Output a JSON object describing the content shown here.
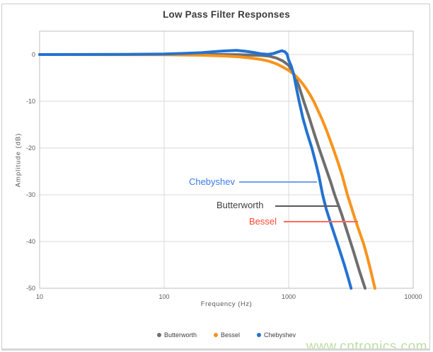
{
  "chart_data": {
    "type": "line",
    "title": "Low Pass Filter Responses",
    "xlabel": "Frequency (Hz)",
    "ylabel": "Amplitude (dB)",
    "x_scale": "log",
    "xlim": [
      10,
      10000
    ],
    "ylim": [
      -50,
      5
    ],
    "x_ticks": [
      "10",
      "100",
      "1000",
      "10000"
    ],
    "y_ticks": [
      "0",
      "-10",
      "-20",
      "-30",
      "-40",
      "-50"
    ],
    "y_tick_values": [
      0,
      -10,
      -20,
      -30,
      -40,
      -50
    ],
    "grid": true,
    "grid_color": "#d9d9d9",
    "axis_border_color": "#bfbfbf",
    "legend_position": "bottom",
    "series": [
      {
        "name": "Butterworth",
        "color": "#6e6e6e",
        "points": [
          [
            10,
            0
          ],
          [
            50,
            0
          ],
          [
            100,
            0
          ],
          [
            200,
            0
          ],
          [
            300,
            0
          ],
          [
            400,
            -0.05
          ],
          [
            500,
            -0.1
          ],
          [
            600,
            -0.2
          ],
          [
            700,
            -0.35
          ],
          [
            800,
            -0.75
          ],
          [
            900,
            -1.4
          ],
          [
            1000,
            -2.3
          ],
          [
            1100,
            -4.2
          ],
          [
            1200,
            -6.5
          ],
          [
            1322,
            -10
          ],
          [
            1450,
            -13.2
          ],
          [
            1600,
            -16.8
          ],
          [
            1750,
            -20
          ],
          [
            2000,
            -24.5
          ],
          [
            2170,
            -27.2
          ],
          [
            2340,
            -30
          ],
          [
            2650,
            -34
          ],
          [
            3000,
            -38.5
          ],
          [
            3350,
            -42.5
          ],
          [
            3700,
            -46.3
          ],
          [
            4110,
            -50
          ]
        ]
      },
      {
        "name": "Bessel",
        "color": "#f7941d",
        "points": [
          [
            10,
            0
          ],
          [
            100,
            -0.05
          ],
          [
            200,
            -0.15
          ],
          [
            300,
            -0.3
          ],
          [
            400,
            -0.5
          ],
          [
            500,
            -0.75
          ],
          [
            600,
            -1.05
          ],
          [
            700,
            -1.45
          ],
          [
            800,
            -2.0
          ],
          [
            900,
            -2.7
          ],
          [
            1000,
            -3.4
          ],
          [
            1100,
            -4.2
          ],
          [
            1200,
            -5.2
          ],
          [
            1300,
            -6.3
          ],
          [
            1400,
            -7.5
          ],
          [
            1500,
            -8.8
          ],
          [
            1589,
            -10
          ],
          [
            1700,
            -11.7
          ],
          [
            1850,
            -13.8
          ],
          [
            2000,
            -16
          ],
          [
            2270,
            -20
          ],
          [
            2500,
            -23.2
          ],
          [
            2700,
            -26
          ],
          [
            2963,
            -30
          ],
          [
            3200,
            -32.8
          ],
          [
            3400,
            -35
          ],
          [
            3600,
            -37
          ],
          [
            3800,
            -38.8
          ],
          [
            4000,
            -40.5
          ],
          [
            4300,
            -43.5
          ],
          [
            4600,
            -46.6
          ],
          [
            4930,
            -50
          ]
        ]
      },
      {
        "name": "Chebyshev",
        "color": "#2372d3",
        "points": [
          [
            10,
            0
          ],
          [
            50,
            0.05
          ],
          [
            100,
            0.1
          ],
          [
            150,
            0.25
          ],
          [
            200,
            0.4
          ],
          [
            250,
            0.6
          ],
          [
            300,
            0.75
          ],
          [
            380,
            0.9
          ],
          [
            450,
            0.7
          ],
          [
            520,
            0.45
          ],
          [
            600,
            0.15
          ],
          [
            680,
            0.05
          ],
          [
            750,
            0.2
          ],
          [
            820,
            0.55
          ],
          [
            880,
            0.8
          ],
          [
            930,
            0.6
          ],
          [
            970,
            0.1
          ],
          [
            1000,
            -1.2
          ],
          [
            1050,
            -2.5
          ],
          [
            1100,
            -4.3
          ],
          [
            1150,
            -7
          ],
          [
            1213,
            -10
          ],
          [
            1300,
            -13.6
          ],
          [
            1400,
            -16.6
          ],
          [
            1535,
            -20
          ],
          [
            1650,
            -23.2
          ],
          [
            1750,
            -26
          ],
          [
            1874,
            -30
          ],
          [
            2000,
            -33
          ],
          [
            2200,
            -36.5
          ],
          [
            2400,
            -39.5
          ],
          [
            2600,
            -42.3
          ],
          [
            2800,
            -45
          ],
          [
            3000,
            -47.7
          ],
          [
            3170,
            -50
          ]
        ]
      }
    ],
    "annotations": [
      {
        "label": "Chebyshev",
        "text_color": "#3d7be5",
        "line_color": "#6fa0ee"
      },
      {
        "label": "Butterworth",
        "text_color": "#3f3f3f",
        "line_color": "#595959"
      },
      {
        "label": "Bessel",
        "text_color": "#ff4733",
        "line_color": "#ff6a5a"
      }
    ]
  },
  "watermark": {
    "text": "www.cntronics.com",
    "color": "#a6d385"
  }
}
